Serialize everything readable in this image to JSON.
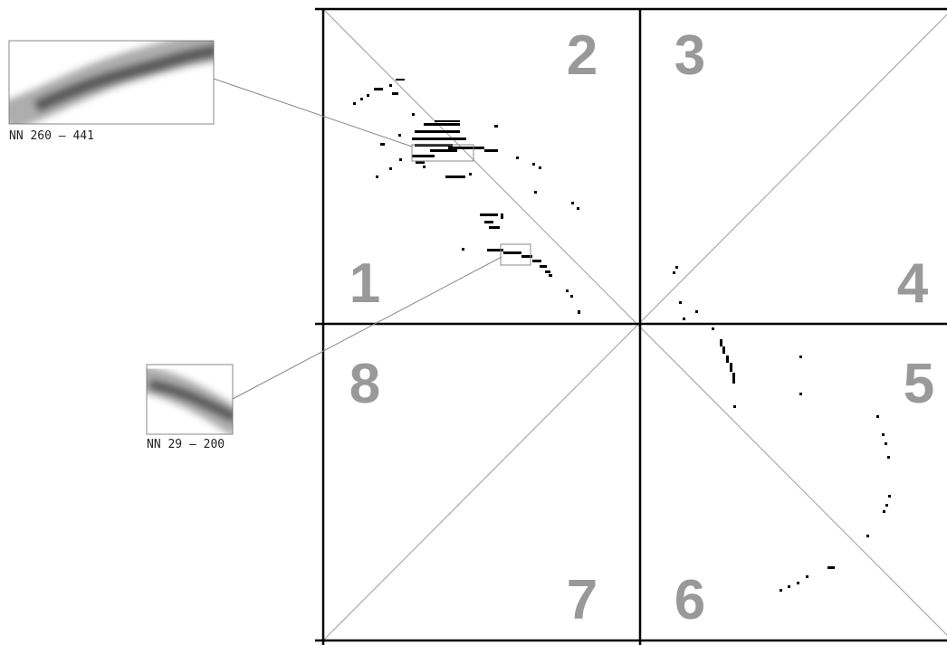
{
  "octants": [
    "1",
    "2",
    "3",
    "4",
    "5",
    "6",
    "7",
    "8"
  ],
  "insets": [
    {
      "label": "NN 260 – 441"
    },
    {
      "label": "NN 29 – 200"
    }
  ]
}
